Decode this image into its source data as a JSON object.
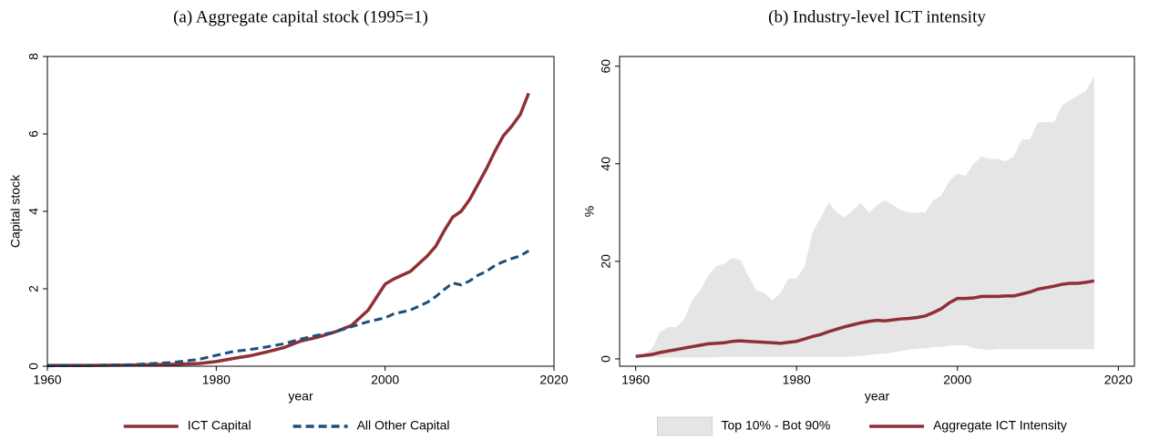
{
  "chart_data": [
    {
      "type": "line",
      "title": "(a) Aggregate capital stock (1995=1)",
      "xlabel": "year",
      "ylabel": "Capital stock",
      "x": [
        1960,
        1965,
        1970,
        1975,
        1978,
        1980,
        1982,
        1984,
        1986,
        1988,
        1990,
        1992,
        1994,
        1996,
        1998,
        2000,
        2001,
        2002,
        2003,
        2004,
        2005,
        2006,
        2007,
        2008,
        2009,
        2010,
        2011,
        2012,
        2013,
        2014,
        2015,
        2016,
        2017
      ],
      "series": [
        {
          "name": "ICT Capital",
          "color": "#8f2f36",
          "dashed": false,
          "values": [
            0.02,
            0.02,
            0.03,
            0.05,
            0.07,
            0.12,
            0.2,
            0.27,
            0.37,
            0.48,
            0.65,
            0.75,
            0.88,
            1.05,
            1.45,
            2.12,
            2.25,
            2.35,
            2.45,
            2.65,
            2.85,
            3.1,
            3.5,
            3.85,
            4.0,
            4.3,
            4.7,
            5.1,
            5.55,
            5.95,
            6.2,
            6.5,
            7.05
          ]
        },
        {
          "name": "All Other Capital",
          "color": "#1f4e79",
          "dashed": true,
          "values": [
            0.01,
            0.02,
            0.04,
            0.1,
            0.18,
            0.28,
            0.38,
            0.43,
            0.5,
            0.58,
            0.7,
            0.8,
            0.88,
            1.02,
            1.15,
            1.25,
            1.35,
            1.4,
            1.45,
            1.55,
            1.65,
            1.8,
            1.98,
            2.15,
            2.1,
            2.2,
            2.35,
            2.45,
            2.6,
            2.7,
            2.78,
            2.85,
            2.98
          ]
        }
      ],
      "xlim": [
        1960,
        2020
      ],
      "xticks": [
        1960,
        1980,
        2000,
        2020
      ],
      "ylim": [
        0,
        8
      ],
      "yticks": [
        0,
        2,
        4,
        6,
        8
      ]
    },
    {
      "type": "line",
      "title": "(b) Industry-level ICT intensity",
      "xlabel": "year",
      "ylabel": "%",
      "x": [
        1960,
        1961,
        1962,
        1963,
        1964,
        1965,
        1966,
        1967,
        1968,
        1969,
        1970,
        1971,
        1972,
        1973,
        1974,
        1975,
        1976,
        1977,
        1978,
        1979,
        1980,
        1981,
        1982,
        1983,
        1984,
        1985,
        1986,
        1987,
        1988,
        1989,
        1990,
        1991,
        1992,
        1993,
        1994,
        1995,
        1996,
        1997,
        1998,
        1999,
        2000,
        2001,
        2002,
        2003,
        2004,
        2005,
        2006,
        2007,
        2008,
        2009,
        2010,
        2011,
        2012,
        2013,
        2014,
        2015,
        2016,
        2017
      ],
      "series": [
        {
          "name": "Top 10% - Bot 90%",
          "color": "#e5e5e5",
          "upper": [
            0.5,
            1,
            2,
            5.5,
            6.5,
            6.5,
            8,
            12,
            14,
            17,
            19,
            19.5,
            20.7,
            20.3,
            17,
            14,
            13.5,
            12,
            13.5,
            16.5,
            16.5,
            19,
            26,
            29,
            32,
            30,
            29,
            30.5,
            32,
            30,
            31.5,
            32.5,
            31.5,
            30.5,
            30,
            30,
            30,
            32.5,
            33.5,
            36.5,
            38,
            37.5,
            40,
            41.5,
            41,
            41,
            40.5,
            41.5,
            45,
            45,
            48.5,
            48.5,
            48.5,
            52,
            53,
            54,
            55,
            58
          ],
          "lower": [
            0.3,
            0.3,
            0.3,
            0.3,
            0.3,
            0.3,
            0.3,
            0.3,
            0.3,
            0.3,
            0.3,
            0.4,
            0.4,
            0.4,
            0.4,
            0.4,
            0.4,
            0.4,
            0.4,
            0.4,
            0.4,
            0.4,
            0.4,
            0.4,
            0.4,
            0.4,
            0.4,
            0.5,
            0.6,
            0.8,
            1.0,
            1.1,
            1.3,
            1.6,
            1.9,
            2.1,
            2.2,
            2.4,
            2.5,
            2.7,
            2.8,
            2.8,
            2.2,
            2.0,
            1.8,
            2.0,
            2.0,
            2.0,
            2.0,
            2.0,
            2.0,
            2.0,
            2.0,
            2.0,
            2.0,
            2.0,
            2.0,
            2.0
          ]
        },
        {
          "name": "Aggregate ICT Intensity",
          "color": "#8f2f36",
          "values": [
            0.5,
            0.7,
            0.9,
            1.3,
            1.6,
            1.9,
            2.2,
            2.5,
            2.8,
            3.1,
            3.2,
            3.3,
            3.6,
            3.7,
            3.6,
            3.5,
            3.4,
            3.3,
            3.2,
            3.4,
            3.6,
            4.1,
            4.6,
            5.0,
            5.6,
            6.1,
            6.6,
            7.0,
            7.4,
            7.7,
            7.9,
            7.8,
            8.0,
            8.2,
            8.3,
            8.5,
            8.8,
            9.5,
            10.3,
            11.5,
            12.4,
            12.4,
            12.5,
            12.8,
            12.8,
            12.8,
            12.9,
            12.9,
            13.3,
            13.7,
            14.3,
            14.6,
            14.9,
            15.3,
            15.5,
            15.5,
            15.7,
            16.0
          ]
        }
      ],
      "xlim": [
        1958,
        2022
      ],
      "xticks": [
        1960,
        1980,
        2000,
        2020
      ],
      "ylim": [
        -1.5,
        62
      ],
      "yticks": [
        0,
        20,
        40,
        60
      ]
    }
  ]
}
